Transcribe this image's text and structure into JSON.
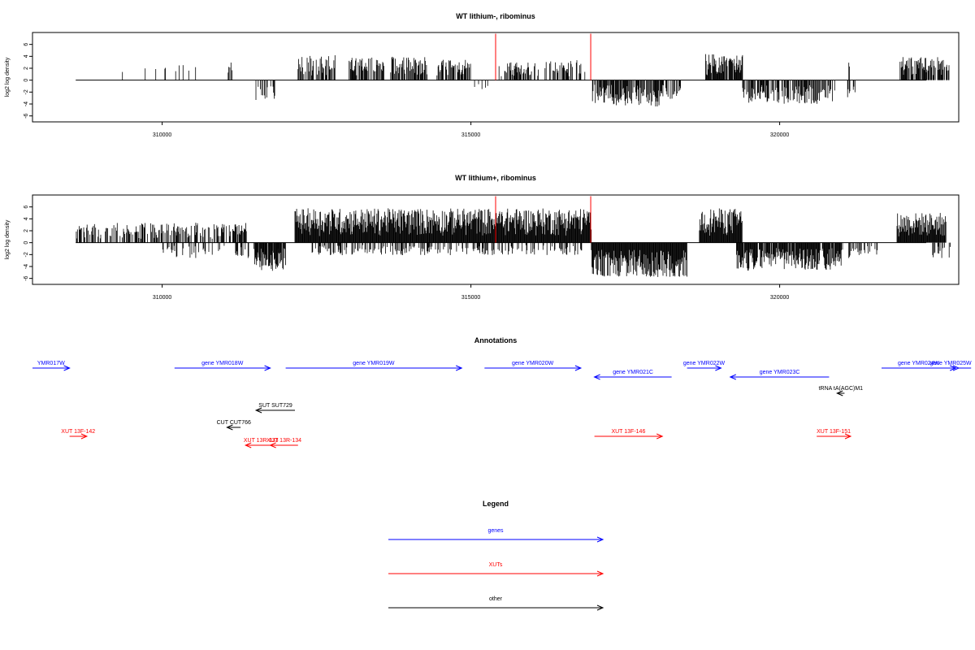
{
  "chart_data": [
    {
      "type": "bar",
      "title": "WT lithium-, ribominus",
      "xlabel": "",
      "ylabel": "log2 log density",
      "xlim": [
        307900,
        322900
      ],
      "ylim": [
        -7,
        8
      ],
      "x_ticks": [
        "310000",
        "315000",
        "320000"
      ],
      "y_ticks": [
        "-6",
        "-4",
        "-2",
        "0",
        "2",
        "4",
        "6"
      ],
      "markers": [
        315400,
        316940
      ],
      "marker_color": "#ff0000",
      "series": [
        {
          "segments": [
            {
              "from": 309050,
              "to": 309120,
              "density": 0.1,
              "amp": 2.0
            },
            {
              "from": 309200,
              "to": 309800,
              "density": 0.06,
              "amp": 2.0
            },
            {
              "from": 309850,
              "to": 310600,
              "density": 0.1,
              "amp": 2.5
            },
            {
              "from": 310850,
              "to": 310900,
              "density": 0.4,
              "amp": -3.0
            },
            {
              "from": 311050,
              "to": 311150,
              "density": 0.2,
              "amp": 3.0
            },
            {
              "from": 311500,
              "to": 311900,
              "density": 0.25,
              "amp": -3.2
            },
            {
              "from": 312200,
              "to": 312800,
              "density": 0.6,
              "amp": 4.0
            },
            {
              "from": 313000,
              "to": 313600,
              "density": 0.55,
              "amp": 3.8
            },
            {
              "from": 313700,
              "to": 314300,
              "density": 0.7,
              "amp": 3.8
            },
            {
              "from": 314450,
              "to": 315000,
              "density": 0.65,
              "amp": 3.5
            },
            {
              "from": 315050,
              "to": 315350,
              "density": 0.2,
              "amp": -1.5
            },
            {
              "from": 315400,
              "to": 316100,
              "density": 0.6,
              "amp": 3.0
            },
            {
              "from": 316200,
              "to": 316850,
              "density": 0.5,
              "amp": 3.2
            },
            {
              "from": 316950,
              "to": 317300,
              "density": 0.7,
              "amp": -3.8
            },
            {
              "from": 317300,
              "to": 318100,
              "density": 0.8,
              "amp": -4.2
            },
            {
              "from": 318100,
              "to": 318400,
              "density": 0.5,
              "amp": -3.0
            },
            {
              "from": 318800,
              "to": 319400,
              "density": 0.9,
              "amp": 4.2
            },
            {
              "from": 319400,
              "to": 320200,
              "density": 0.7,
              "amp": -3.8
            },
            {
              "from": 320200,
              "to": 320900,
              "density": 0.6,
              "amp": -3.8
            },
            {
              "from": 321000,
              "to": 321200,
              "density": 0.15,
              "amp": 3.0
            },
            {
              "from": 321100,
              "to": 321250,
              "density": 0.3,
              "amp": -2.8
            },
            {
              "from": 321950,
              "to": 322750,
              "density": 0.8,
              "amp": 3.8
            }
          ]
        }
      ]
    },
    {
      "type": "bar",
      "title": "WT lithium+, ribominus",
      "xlabel": "",
      "ylabel": "log2 log density",
      "xlim": [
        307900,
        322900
      ],
      "ylim": [
        -7,
        8
      ],
      "x_ticks": [
        "310000",
        "315000",
        "320000"
      ],
      "y_ticks": [
        "-6",
        "-4",
        "-2",
        "0",
        "2",
        "4",
        "6"
      ],
      "markers": [
        315400,
        316940
      ],
      "marker_color": "#ff0000",
      "series": [
        {
          "segments": [
            {
              "from": 308600,
              "to": 311400,
              "density": 0.55,
              "amp": 3.2
            },
            {
              "from": 310000,
              "to": 311900,
              "density": 0.25,
              "amp": -2.5
            },
            {
              "from": 311500,
              "to": 312000,
              "density": 0.9,
              "amp": -4.5
            },
            {
              "from": 312150,
              "to": 316950,
              "density": 1.0,
              "amp": 5.5
            },
            {
              "from": 312400,
              "to": 316800,
              "density": 0.35,
              "amp": -2.0
            },
            {
              "from": 316950,
              "to": 318500,
              "density": 1.0,
              "amp": -5.5
            },
            {
              "from": 318700,
              "to": 319400,
              "density": 1.0,
              "amp": 5.5
            },
            {
              "from": 319300,
              "to": 321000,
              "density": 0.9,
              "amp": -4.5
            },
            {
              "from": 321000,
              "to": 321600,
              "density": 0.3,
              "amp": -2.5
            },
            {
              "from": 321900,
              "to": 322700,
              "density": 1.0,
              "amp": 4.8
            },
            {
              "from": 322450,
              "to": 322800,
              "density": 0.4,
              "amp": -2.5
            }
          ]
        }
      ]
    }
  ],
  "annotations": {
    "title": "Annotations",
    "items": [
      {
        "label": "YMR017W",
        "color": "#0000ff",
        "from": 307900,
        "to": 308500,
        "dir": "right",
        "row": 0
      },
      {
        "label": "gene YMR018W",
        "color": "#0000ff",
        "from": 310200,
        "to": 311750,
        "dir": "right",
        "row": 0
      },
      {
        "label": "gene YMR019W",
        "color": "#0000ff",
        "from": 312000,
        "to": 314850,
        "dir": "right",
        "row": 0
      },
      {
        "label": "gene YMR020W",
        "color": "#0000ff",
        "from": 315220,
        "to": 316780,
        "dir": "right",
        "row": 0
      },
      {
        "label": "gene YMR021C",
        "color": "#0000ff",
        "from": 317000,
        "to": 318250,
        "dir": "left",
        "row": 1
      },
      {
        "label": "gene YMR022W",
        "color": "#0000ff",
        "from": 318500,
        "to": 319050,
        "dir": "right",
        "row": 0
      },
      {
        "label": "gene YMR023C",
        "color": "#0000ff",
        "from": 319200,
        "to": 320800,
        "dir": "left",
        "row": 1
      },
      {
        "label": "gene YMR024W",
        "color": "#0000ff",
        "from": 321650,
        "to": 322850,
        "dir": "right",
        "row": 0
      },
      {
        "label": "gene YMR025W",
        "color": "#0000ff",
        "from": 323100,
        "to": 324000,
        "dir": "right",
        "row": 0
      },
      {
        "label": "tRNA tA(AGC)M1",
        "color": "#000000",
        "from": 320930,
        "to": 321050,
        "dir": "left",
        "row": 3
      },
      {
        "label": "SUT SUT729",
        "color": "#000000",
        "from": 311520,
        "to": 312150,
        "dir": "left",
        "row": 4
      },
      {
        "label": "CUT CUT766",
        "color": "#000000",
        "from": 311050,
        "to": 311270,
        "dir": "left",
        "row": 5
      },
      {
        "label": "XUT 13F-142",
        "color": "#ff0000",
        "from": 308500,
        "to": 308780,
        "dir": "right",
        "row": 6
      },
      {
        "label": "XUT 13F-146",
        "color": "#ff0000",
        "from": 317000,
        "to": 318100,
        "dir": "right",
        "row": 6
      },
      {
        "label": "XUT 13F-151",
        "color": "#ff0000",
        "from": 320600,
        "to": 321150,
        "dir": "right",
        "row": 6
      },
      {
        "label": "XUT 13R-133",
        "color": "#ff0000",
        "from": 311350,
        "to": 311850,
        "dir": "left",
        "row": 7
      },
      {
        "label": "XUT 13R-134",
        "color": "#ff0000",
        "from": 311750,
        "to": 312200,
        "dir": "left",
        "row": 7
      }
    ]
  },
  "legend": {
    "title": "Legend",
    "items": [
      {
        "label": "genes",
        "color": "#0000ff"
      },
      {
        "label": "XUTs",
        "color": "#ff0000"
      },
      {
        "label": "other",
        "color": "#000000"
      }
    ]
  }
}
